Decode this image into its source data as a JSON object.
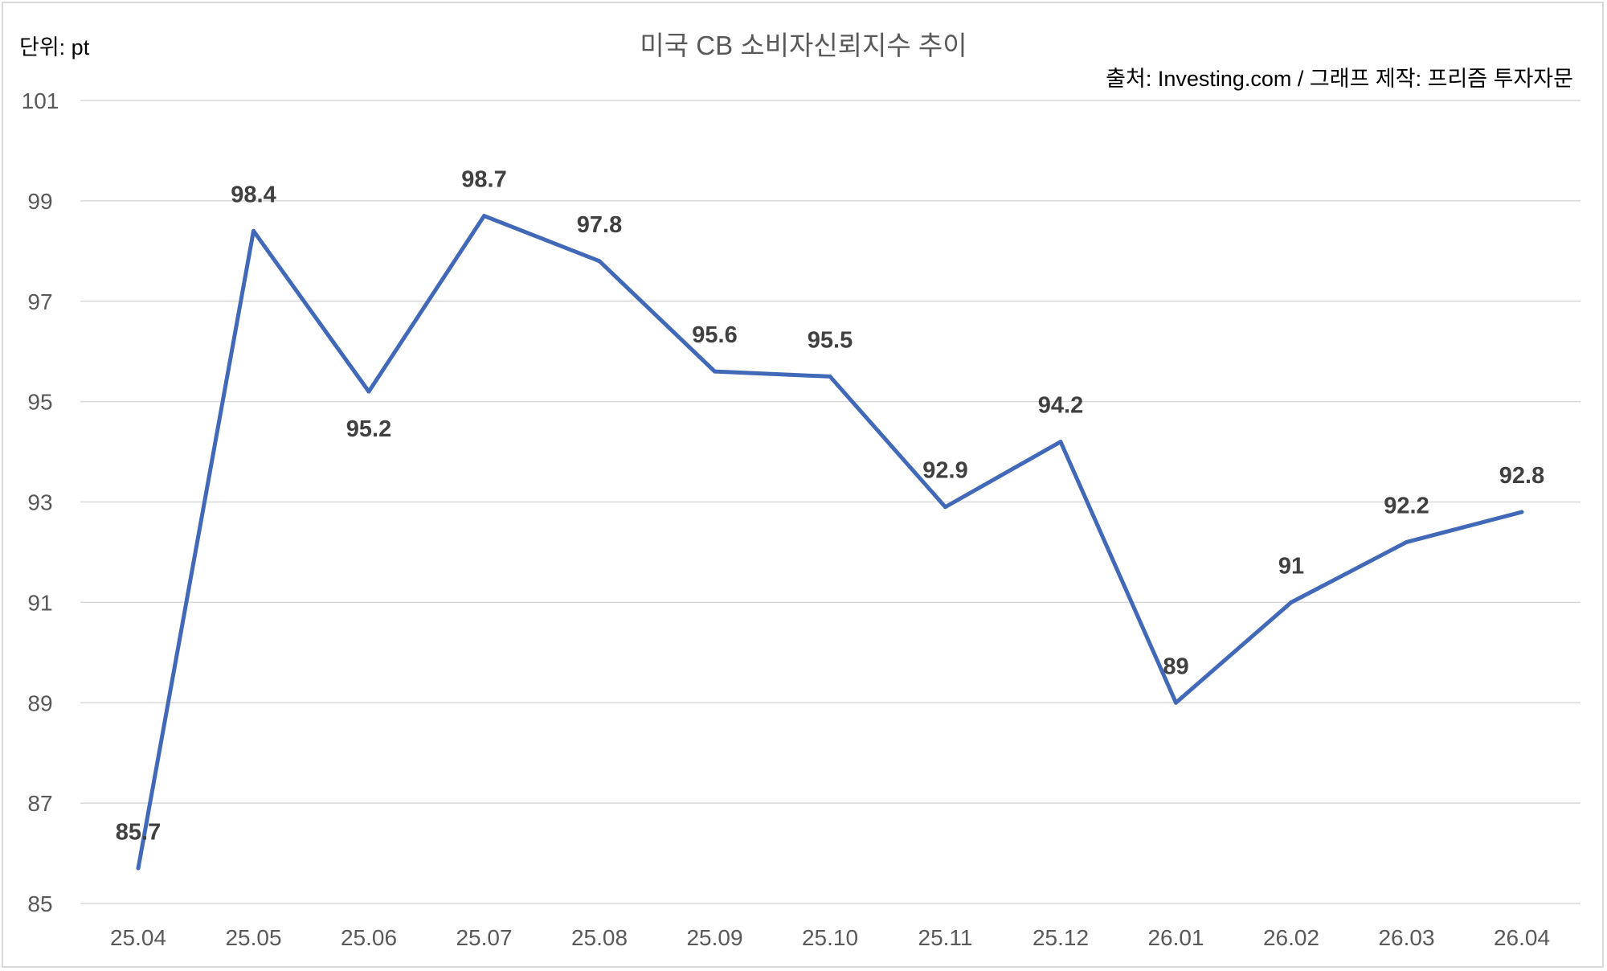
{
  "chart_data": {
    "type": "line",
    "title": "미국 CB 소비자신뢰지수 추이",
    "unit_label": "단위: pt",
    "source_label": "출처: Investing.com / 그래프 제작: 프리즘 투자자문",
    "xlabel": "",
    "ylabel": "",
    "ylim": [
      85,
      101
    ],
    "yticks": [
      85,
      87,
      89,
      91,
      93,
      95,
      97,
      99,
      101
    ],
    "grid": true,
    "categories": [
      "25.04",
      "25.05",
      "25.06",
      "25.07",
      "25.08",
      "25.09",
      "25.10",
      "25.11",
      "25.12",
      "26.01",
      "26.02",
      "26.03",
      "26.04"
    ],
    "series": [
      {
        "name": "CB 소비자신뢰지수",
        "color": "#4169B8",
        "values": [
          85.7,
          98.4,
          95.2,
          98.7,
          97.8,
          95.6,
          95.5,
          92.9,
          94.2,
          89,
          91,
          92.2,
          92.8
        ],
        "labels": [
          "85.7",
          "98.4",
          "95.2",
          "98.7",
          "97.8",
          "95.6",
          "95.5",
          "92.9",
          "94.2",
          "89",
          "91",
          "92.2",
          "92.8"
        ],
        "label_below": [
          false,
          false,
          true,
          false,
          false,
          false,
          false,
          false,
          false,
          false,
          false,
          false,
          false
        ]
      }
    ]
  }
}
